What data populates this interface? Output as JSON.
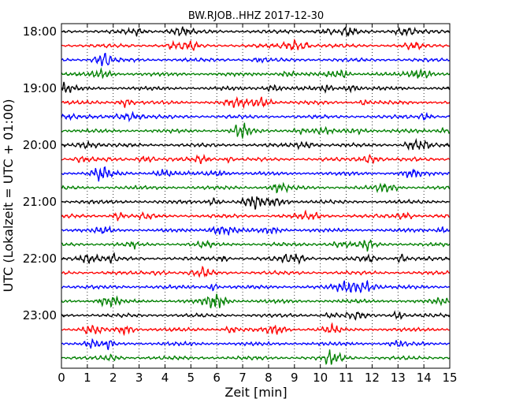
{
  "chart_data": {
    "type": "line",
    "title": "BW.RJOB..HHZ 2017-12-30",
    "xlabel": "Zeit  [min]",
    "ylabel": "UTC (Lokalzeit = UTC + 01:00)",
    "xlim": [
      0,
      15
    ],
    "x_ticks": [
      "0",
      "1",
      "2",
      "3",
      "4",
      "5",
      "6",
      "7",
      "8",
      "9",
      "10",
      "11",
      "12",
      "13",
      "14",
      "15"
    ],
    "y_ticks": [
      "18:00",
      "19:00",
      "20:00",
      "21:00",
      "22:00",
      "23:00"
    ],
    "trace_start_times": [
      "18:00",
      "18:15",
      "18:30",
      "18:45",
      "19:00",
      "19:15",
      "19:30",
      "19:45",
      "20:00",
      "20:15",
      "20:30",
      "20:45",
      "21:00",
      "21:15",
      "21:30",
      "21:45",
      "22:00",
      "22:15",
      "22:30",
      "22:45",
      "23:00",
      "23:15",
      "23:30",
      "23:45"
    ],
    "trace_colors": [
      "#000000",
      "#ff0000",
      "#0000ff",
      "#008000"
    ],
    "x_grid": "dotted vertical lines at each minute"
  }
}
